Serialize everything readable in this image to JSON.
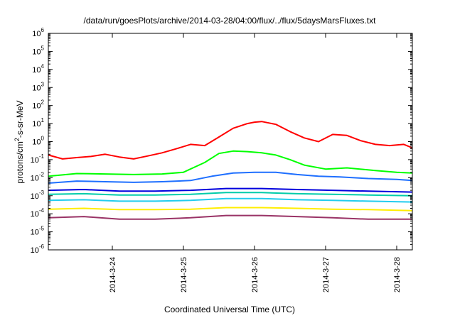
{
  "chart_data": {
    "type": "line",
    "title": "/data/run/goesPlots/archive/2014-03-28/04:00/flux/../flux/5daysMarsFluxes.txt",
    "xlabel": "Coordinated Universal Time (UTC)",
    "ylabel_main": "protons/cm",
    "ylabel_sup": "2",
    "ylabel_rest": "-s-sr-MeV",
    "xlim_days": [
      23.1,
      28.22
    ],
    "x_start_date": "2014-3-23",
    "ylim_log10": [
      -6,
      6
    ],
    "y_scale": "log",
    "y_ticks": [
      {
        "base": "10",
        "exp": "-6"
      },
      {
        "base": "10",
        "exp": "-5"
      },
      {
        "base": "10",
        "exp": "-4"
      },
      {
        "base": "10",
        "exp": "-3"
      },
      {
        "base": "10",
        "exp": "-2"
      },
      {
        "base": "10",
        "exp": "-1"
      },
      {
        "base": "10",
        "exp": "0"
      },
      {
        "base": "10",
        "exp": "1"
      },
      {
        "base": "10",
        "exp": "2"
      },
      {
        "base": "10",
        "exp": "3"
      },
      {
        "base": "10",
        "exp": "4"
      },
      {
        "base": "10",
        "exp": "5"
      },
      {
        "base": "10",
        "exp": "6"
      }
    ],
    "x_ticks": [
      {
        "label": "2014-3-24",
        "day": 24
      },
      {
        "label": "2014-3-25",
        "day": 25
      },
      {
        "label": "2014-3-26",
        "day": 26
      },
      {
        "label": "2014-3-27",
        "day": 27
      },
      {
        "label": "2014-3-28",
        "day": 28
      }
    ],
    "series": [
      {
        "color": "#ff0000",
        "x": [
          23.1,
          23.3,
          23.5,
          23.7,
          23.9,
          24.1,
          24.3,
          24.5,
          24.7,
          24.9,
          25.1,
          25.3,
          25.5,
          25.7,
          25.9,
          26.0,
          26.1,
          26.3,
          26.5,
          26.7,
          26.9,
          27.1,
          27.3,
          27.5,
          27.7,
          27.9,
          28.1,
          28.22
        ],
        "values": [
          0.18,
          0.11,
          0.13,
          0.15,
          0.2,
          0.14,
          0.11,
          0.16,
          0.24,
          0.4,
          0.7,
          0.6,
          1.8,
          5.5,
          10,
          12,
          13,
          9,
          3.6,
          1.6,
          1.0,
          2.5,
          2.2,
          1.1,
          0.7,
          0.6,
          0.7,
          0.45
        ]
      },
      {
        "color": "#00ff00",
        "x": [
          23.1,
          23.5,
          23.9,
          24.3,
          24.7,
          25.0,
          25.3,
          25.5,
          25.7,
          25.9,
          26.1,
          26.3,
          26.5,
          26.7,
          27.0,
          27.3,
          27.7,
          28.0,
          28.22
        ],
        "values": [
          0.012,
          0.017,
          0.016,
          0.015,
          0.016,
          0.02,
          0.07,
          0.22,
          0.3,
          0.28,
          0.24,
          0.18,
          0.1,
          0.05,
          0.03,
          0.035,
          0.025,
          0.02,
          0.018
        ]
      },
      {
        "color": "#1e6fff",
        "x": [
          23.1,
          23.5,
          23.9,
          24.3,
          24.7,
          25.1,
          25.4,
          25.7,
          26.0,
          26.3,
          26.6,
          26.9,
          27.2,
          27.6,
          28.0,
          28.22
        ],
        "values": [
          0.005,
          0.0065,
          0.006,
          0.0055,
          0.006,
          0.007,
          0.012,
          0.018,
          0.02,
          0.02,
          0.015,
          0.012,
          0.011,
          0.009,
          0.008,
          0.007
        ]
      },
      {
        "color": "#0000dd",
        "x": [
          23.1,
          23.6,
          24.1,
          24.6,
          25.1,
          25.6,
          26.1,
          26.6,
          27.1,
          27.6,
          28.22
        ],
        "values": [
          0.002,
          0.0022,
          0.0018,
          0.0018,
          0.002,
          0.0025,
          0.0025,
          0.0022,
          0.002,
          0.0018,
          0.0016
        ]
      },
      {
        "color": "#00ccaa",
        "x": [
          23.1,
          23.6,
          24.1,
          24.6,
          25.1,
          25.6,
          26.1,
          26.6,
          27.1,
          27.6,
          28.22
        ],
        "values": [
          0.0012,
          0.0013,
          0.0011,
          0.0011,
          0.0012,
          0.0015,
          0.0015,
          0.0013,
          0.0012,
          0.0011,
          0.001
        ]
      },
      {
        "color": "#22ccee",
        "x": [
          23.1,
          23.6,
          24.1,
          24.6,
          25.1,
          25.6,
          26.1,
          26.6,
          27.1,
          27.6,
          28.22
        ],
        "values": [
          0.00055,
          0.0006,
          0.0005,
          0.0005,
          0.00055,
          0.0007,
          0.0007,
          0.0006,
          0.00055,
          0.0005,
          0.00045
        ]
      },
      {
        "color": "#ffee00",
        "x": [
          23.1,
          23.6,
          24.1,
          24.6,
          25.1,
          25.6,
          26.1,
          26.6,
          27.1,
          27.6,
          28.22
        ],
        "values": [
          0.00018,
          0.0002,
          0.00017,
          0.00017,
          0.00018,
          0.00022,
          0.00022,
          0.0002,
          0.00018,
          0.00017,
          0.00015
        ]
      },
      {
        "color": "#993366",
        "x": [
          23.1,
          23.6,
          24.1,
          24.6,
          25.1,
          25.6,
          26.1,
          26.6,
          27.1,
          27.6,
          28.22
        ],
        "values": [
          6e-05,
          7e-05,
          5e-05,
          5e-05,
          6e-05,
          8e-05,
          8e-05,
          7e-05,
          6e-05,
          5e-05,
          5e-05
        ]
      }
    ]
  }
}
